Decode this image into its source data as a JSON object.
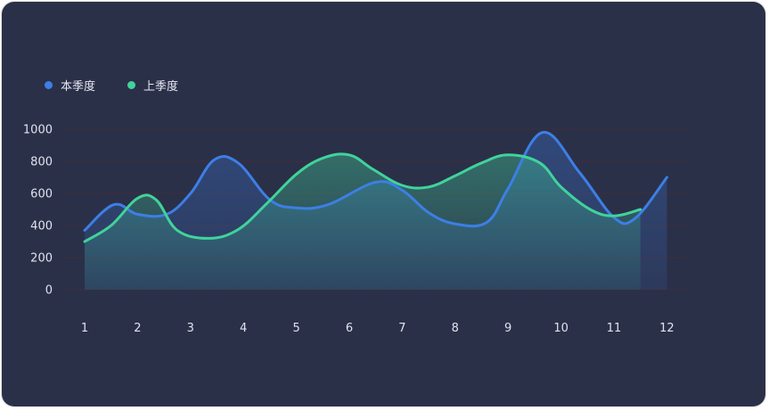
{
  "legend": {
    "items": [
      {
        "label": "本季度",
        "color": "#3c7fe6"
      },
      {
        "label": "上季度",
        "color": "#40d39b"
      }
    ]
  },
  "chart_data": {
    "type": "line",
    "categories": [
      "1",
      "2",
      "3",
      "4",
      "5",
      "6",
      "7",
      "8",
      "9",
      "10",
      "11",
      "12"
    ],
    "ylim": [
      0,
      1000
    ],
    "yticks": [
      "0",
      "200",
      "400",
      "600",
      "800",
      "1000"
    ],
    "grid": true,
    "legend_position": "top-left",
    "series": [
      {
        "name": "本季度",
        "color": "#3c7fe6",
        "x": [
          1,
          1.55,
          2,
          2.55,
          3,
          3.45,
          3.9,
          4.5,
          5,
          5.6,
          6.5,
          7,
          7.5,
          8,
          8.6,
          9,
          9.65,
          10.35,
          11,
          11.4,
          12
        ],
        "values": [
          370,
          530,
          470,
          470,
          600,
          810,
          790,
          560,
          510,
          530,
          670,
          620,
          480,
          410,
          420,
          630,
          980,
          730,
          450,
          445,
          700
        ]
      },
      {
        "name": "上季度",
        "color": "#40d39b",
        "x": [
          1,
          1.5,
          2,
          2.35,
          2.75,
          3.35,
          3.9,
          4.45,
          5,
          5.5,
          6,
          6.45,
          7,
          7.5,
          8,
          8.5,
          9,
          9.6,
          10,
          10.55,
          11,
          11.5
        ],
        "values": [
          300,
          400,
          570,
          560,
          370,
          320,
          375,
          540,
          720,
          820,
          840,
          750,
          650,
          640,
          710,
          790,
          840,
          790,
          640,
          500,
          460,
          500
        ]
      }
    ]
  }
}
